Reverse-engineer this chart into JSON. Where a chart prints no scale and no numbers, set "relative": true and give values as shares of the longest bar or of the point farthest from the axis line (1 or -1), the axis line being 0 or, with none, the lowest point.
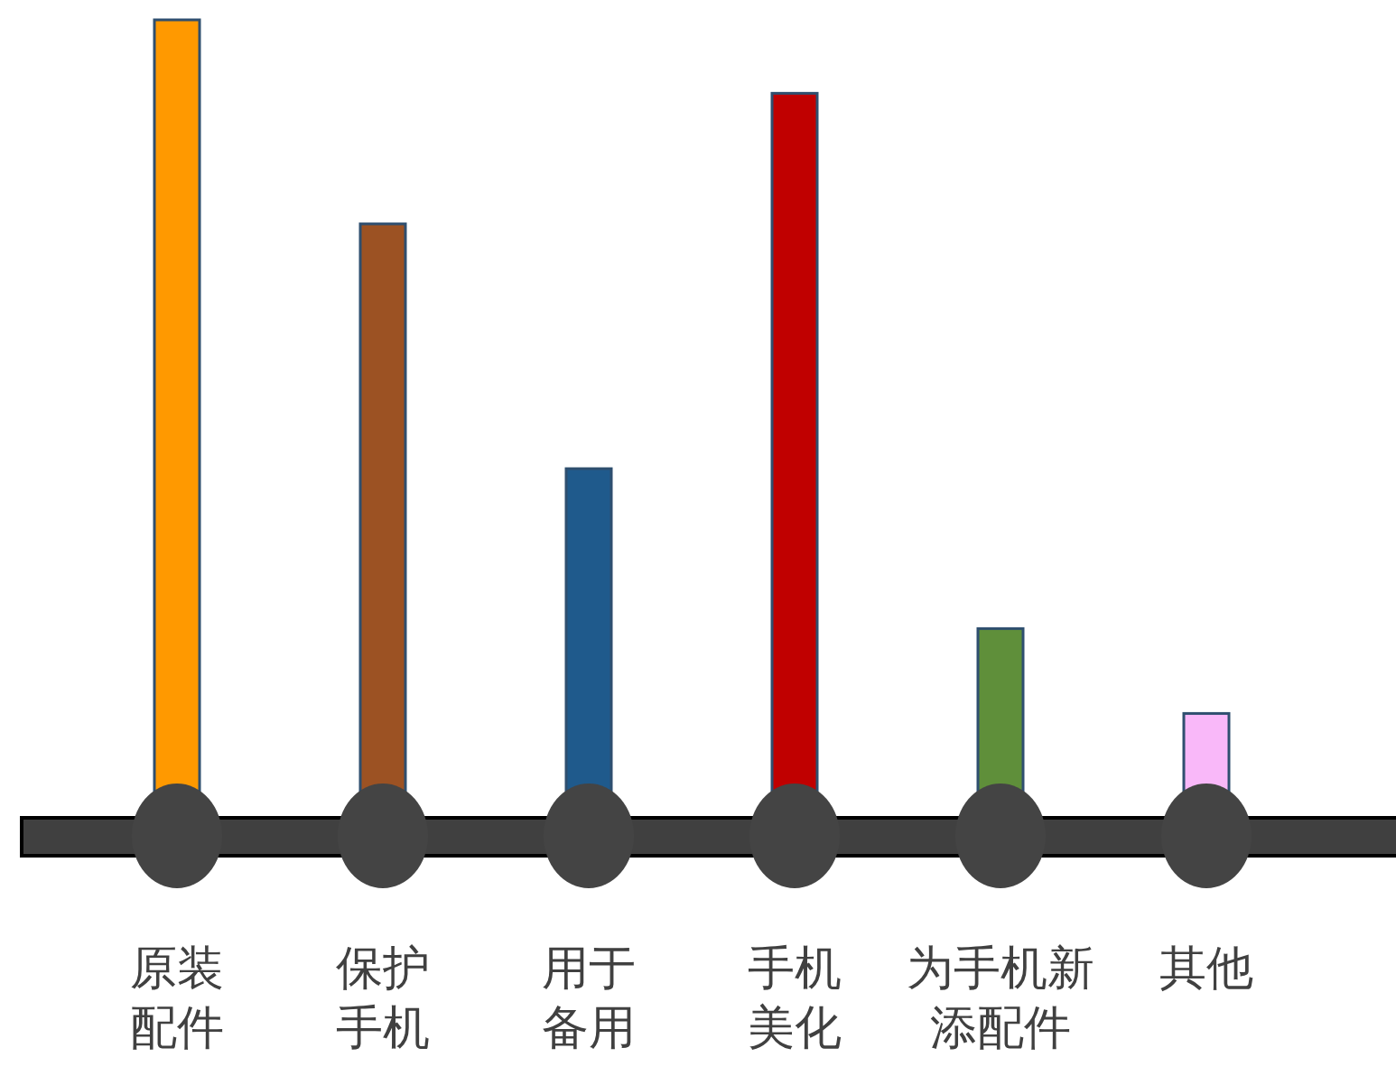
{
  "chart_data": {
    "type": "bar",
    "relative": true,
    "categories": [
      "原装配件",
      "保护手机",
      "用于备用",
      "手机美化",
      "为手机新添配件",
      "其他"
    ],
    "values": [
      1,
      0.75,
      0.45,
      0.91,
      0.254,
      0.15
    ],
    "colors": [
      "#ff9900",
      "#9c5223",
      "#1f5a8c",
      "#c00000",
      "#5f8f3a",
      "#f9b8f9"
    ]
  }
}
